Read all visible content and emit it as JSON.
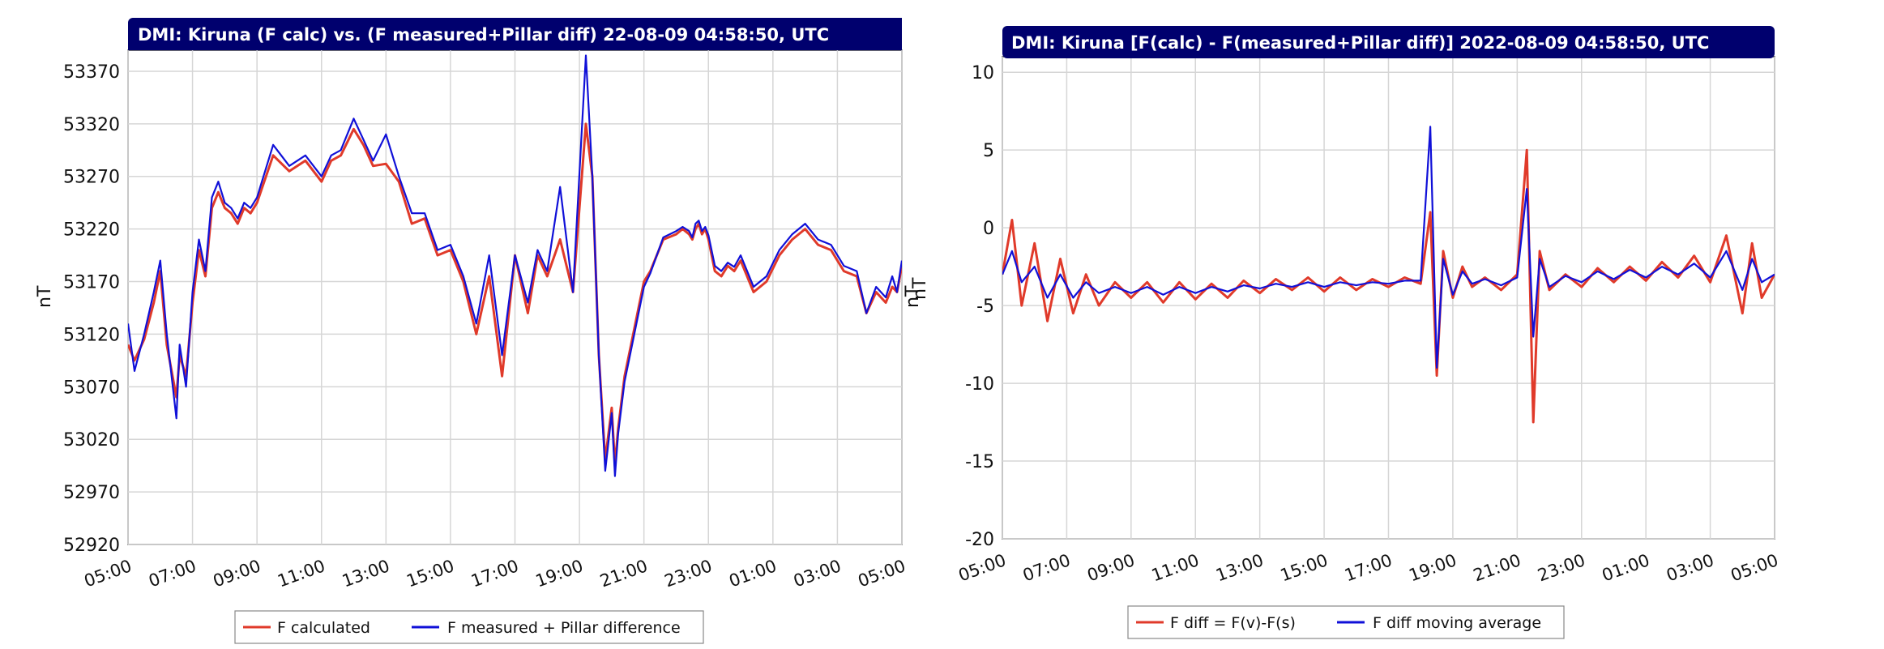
{
  "colors": {
    "title_bg": "#00006e",
    "title_text": "#ffffff",
    "series_red": "#e03a2a",
    "series_blue": "#1010d8",
    "grid": "#d6d6d6"
  },
  "chart_data": [
    {
      "type": "line",
      "title": "DMI: Kiruna (F calc) vs. (F measured+Pillar diff) 22-08-09 04:58:50, UTC",
      "ylabel": "nT",
      "ylabel_right": "nT",
      "ylim": [
        52920,
        53390
      ],
      "yticks": [
        52920,
        52970,
        53020,
        53070,
        53120,
        53170,
        53220,
        53270,
        53320,
        53370
      ],
      "xlim": [
        0,
        24
      ],
      "x_unit": "hours since 05:00",
      "xtick_labels": [
        "05:00",
        "07:00",
        "09:00",
        "11:00",
        "13:00",
        "15:00",
        "17:00",
        "19:00",
        "21:00",
        "23:00",
        "01:00",
        "03:00",
        "05:00"
      ],
      "legend": {
        "placement": "bottom-center",
        "entries": [
          "F calculated",
          "F measured + Pillar difference"
        ]
      },
      "grid": true,
      "series": [
        {
          "name": "F calculated",
          "color": "#e03a2a",
          "x": [
            0,
            0.2,
            0.5,
            0.8,
            1.0,
            1.2,
            1.5,
            1.6,
            1.8,
            2.0,
            2.2,
            2.4,
            2.6,
            2.8,
            3.0,
            3.2,
            3.4,
            3.6,
            3.8,
            4.0,
            4.5,
            5.0,
            5.5,
            6.0,
            6.3,
            6.6,
            7.0,
            7.3,
            7.6,
            8.0,
            8.4,
            8.8,
            9.2,
            9.6,
            10.0,
            10.4,
            10.8,
            11.2,
            11.6,
            12.0,
            12.4,
            12.7,
            13.0,
            13.4,
            13.8,
            14.2,
            14.4,
            14.6,
            14.8,
            15.0,
            15.1,
            15.2,
            15.4,
            15.6,
            15.8,
            16.0,
            16.2,
            16.6,
            17.0,
            17.2,
            17.4,
            17.5,
            17.6,
            17.7,
            17.8,
            17.9,
            18.0,
            18.2,
            18.4,
            18.6,
            18.8,
            19.0,
            19.4,
            19.8,
            20.2,
            20.6,
            21.0,
            21.4,
            21.8,
            22.2,
            22.6,
            22.9,
            23.2,
            23.5,
            23.7,
            23.85,
            24.0
          ],
          "y": [
            53110,
            53095,
            53115,
            53150,
            53180,
            53110,
            53060,
            53100,
            53080,
            53150,
            53200,
            53175,
            53240,
            53255,
            53240,
            53235,
            53225,
            53240,
            53235,
            53245,
            53290,
            53275,
            53285,
            53265,
            53285,
            53290,
            53315,
            53300,
            53280,
            53282,
            53265,
            53225,
            53230,
            53195,
            53200,
            53170,
            53120,
            53175,
            53080,
            53195,
            53140,
            53195,
            53175,
            53210,
            53160,
            53320,
            53270,
            53100,
            53000,
            53050,
            52995,
            53030,
            53080,
            53110,
            53140,
            53170,
            53180,
            53210,
            53215,
            53220,
            53215,
            53210,
            53220,
            53225,
            53215,
            53220,
            53210,
            53180,
            53175,
            53185,
            53180,
            53190,
            53160,
            53170,
            53195,
            53210,
            53220,
            53205,
            53200,
            53180,
            53175,
            53140,
            53160,
            53150,
            53165,
            53160,
            53185
          ]
        },
        {
          "name": "F measured + Pillar difference",
          "color": "#1010d8",
          "x": [
            0,
            0.2,
            0.5,
            0.8,
            1.0,
            1.2,
            1.5,
            1.6,
            1.8,
            2.0,
            2.2,
            2.4,
            2.6,
            2.8,
            3.0,
            3.2,
            3.4,
            3.6,
            3.8,
            4.0,
            4.5,
            5.0,
            5.5,
            6.0,
            6.3,
            6.6,
            7.0,
            7.3,
            7.6,
            8.0,
            8.4,
            8.8,
            9.2,
            9.6,
            10.0,
            10.4,
            10.8,
            11.2,
            11.6,
            12.0,
            12.4,
            12.7,
            13.0,
            13.4,
            13.8,
            14.2,
            14.4,
            14.6,
            14.8,
            15.0,
            15.1,
            15.2,
            15.4,
            15.6,
            15.8,
            16.0,
            16.2,
            16.6,
            17.0,
            17.2,
            17.4,
            17.5,
            17.6,
            17.7,
            17.8,
            17.9,
            18.0,
            18.2,
            18.4,
            18.6,
            18.8,
            19.0,
            19.4,
            19.8,
            20.2,
            20.6,
            21.0,
            21.4,
            21.8,
            22.2,
            22.6,
            22.9,
            23.2,
            23.5,
            23.7,
            23.85,
            24.0
          ],
          "y": [
            53130,
            53085,
            53120,
            53160,
            53190,
            53120,
            53040,
            53110,
            53070,
            53160,
            53210,
            53180,
            53250,
            53265,
            53245,
            53240,
            53230,
            53245,
            53240,
            53250,
            53300,
            53280,
            53290,
            53270,
            53290,
            53295,
            53325,
            53305,
            53285,
            53310,
            53270,
            53235,
            53235,
            53200,
            53205,
            53175,
            53130,
            53195,
            53100,
            53195,
            53150,
            53200,
            53180,
            53260,
            53160,
            53385,
            53270,
            53100,
            52990,
            53045,
            52985,
            53025,
            53075,
            53105,
            53135,
            53165,
            53178,
            53212,
            53218,
            53222,
            53218,
            53212,
            53225,
            53228,
            53218,
            53222,
            53214,
            53185,
            53180,
            53188,
            53184,
            53195,
            53165,
            53175,
            53200,
            53215,
            53225,
            53210,
            53205,
            53185,
            53180,
            53140,
            53165,
            53155,
            53175,
            53160,
            53190
          ]
        }
      ]
    },
    {
      "type": "line",
      "title": "DMI: Kiruna [F(calc) - F(measured+Pillar diff)] 2022-08-09 04:58:50, UTC",
      "ylabel_right": "nT",
      "ylim": [
        -20,
        11
      ],
      "yticks": [
        -20,
        -15,
        -10,
        -5,
        0,
        5,
        10
      ],
      "xlim": [
        0,
        24
      ],
      "x_unit": "hours since 05:00",
      "xtick_labels": [
        "05:00",
        "07:00",
        "09:00",
        "11:00",
        "13:00",
        "15:00",
        "17:00",
        "19:00",
        "21:00",
        "23:00",
        "01:00",
        "03:00",
        "05:00"
      ],
      "legend": {
        "placement": "bottom-center",
        "entries": [
          "F diff = F(v)-F(s)",
          "F diff moving average"
        ]
      },
      "grid": true,
      "series": [
        {
          "name": "F diff = F(v)-F(s)",
          "color": "#e03a2a",
          "x": [
            0,
            0.3,
            0.6,
            1.0,
            1.4,
            1.8,
            2.2,
            2.6,
            3.0,
            3.5,
            4.0,
            4.5,
            5.0,
            5.5,
            6.0,
            6.5,
            7.0,
            7.5,
            8.0,
            8.5,
            9.0,
            9.5,
            10.0,
            10.5,
            11.0,
            11.5,
            12.0,
            12.5,
            13.0,
            13.3,
            13.5,
            13.7,
            14.0,
            14.3,
            14.6,
            15.0,
            15.5,
            16.0,
            16.3,
            16.5,
            16.7,
            17.0,
            17.5,
            18.0,
            18.5,
            19.0,
            19.5,
            20.0,
            20.5,
            21.0,
            21.5,
            22.0,
            22.5,
            23.0,
            23.3,
            23.6,
            24.0
          ],
          "y": [
            -3,
            0.5,
            -5,
            -1,
            -6,
            -2,
            -5.5,
            -3,
            -5,
            -3.5,
            -4.5,
            -3.5,
            -4.8,
            -3.5,
            -4.6,
            -3.6,
            -4.5,
            -3.4,
            -4.2,
            -3.3,
            -4.0,
            -3.2,
            -4.1,
            -3.2,
            -4.0,
            -3.3,
            -3.8,
            -3.2,
            -3.6,
            1.0,
            -9.5,
            -1.5,
            -4.5,
            -2.5,
            -3.8,
            -3.2,
            -4.0,
            -3.0,
            5.0,
            -12.5,
            -1.5,
            -4.0,
            -3.0,
            -3.8,
            -2.6,
            -3.5,
            -2.5,
            -3.4,
            -2.2,
            -3.2,
            -1.8,
            -3.5,
            -0.5,
            -5.5,
            -1.0,
            -4.5,
            -3.0
          ]
        },
        {
          "name": "F diff moving average",
          "color": "#1010d8",
          "x": [
            0,
            0.3,
            0.6,
            1.0,
            1.4,
            1.8,
            2.2,
            2.6,
            3.0,
            3.5,
            4.0,
            4.5,
            5.0,
            5.5,
            6.0,
            6.5,
            7.0,
            7.5,
            8.0,
            8.5,
            9.0,
            9.5,
            10.0,
            10.5,
            11.0,
            11.5,
            12.0,
            12.5,
            13.0,
            13.3,
            13.5,
            13.7,
            14.0,
            14.3,
            14.6,
            15.0,
            15.5,
            16.0,
            16.3,
            16.5,
            16.7,
            17.0,
            17.5,
            18.0,
            18.5,
            19.0,
            19.5,
            20.0,
            20.5,
            21.0,
            21.5,
            22.0,
            22.5,
            23.0,
            23.3,
            23.6,
            24.0
          ],
          "y": [
            -3,
            -1.5,
            -3.5,
            -2.5,
            -4.5,
            -3.0,
            -4.5,
            -3.5,
            -4.2,
            -3.8,
            -4.2,
            -3.8,
            -4.3,
            -3.8,
            -4.2,
            -3.8,
            -4.1,
            -3.7,
            -3.9,
            -3.6,
            -3.8,
            -3.5,
            -3.8,
            -3.5,
            -3.7,
            -3.5,
            -3.6,
            -3.4,
            -3.4,
            6.5,
            -9.0,
            -2.0,
            -4.3,
            -2.8,
            -3.6,
            -3.3,
            -3.7,
            -3.2,
            2.5,
            -7.0,
            -2.0,
            -3.8,
            -3.1,
            -3.5,
            -2.8,
            -3.3,
            -2.7,
            -3.2,
            -2.5,
            -3.0,
            -2.3,
            -3.2,
            -1.5,
            -4.0,
            -2.0,
            -3.5,
            -3.0
          ]
        }
      ]
    }
  ]
}
